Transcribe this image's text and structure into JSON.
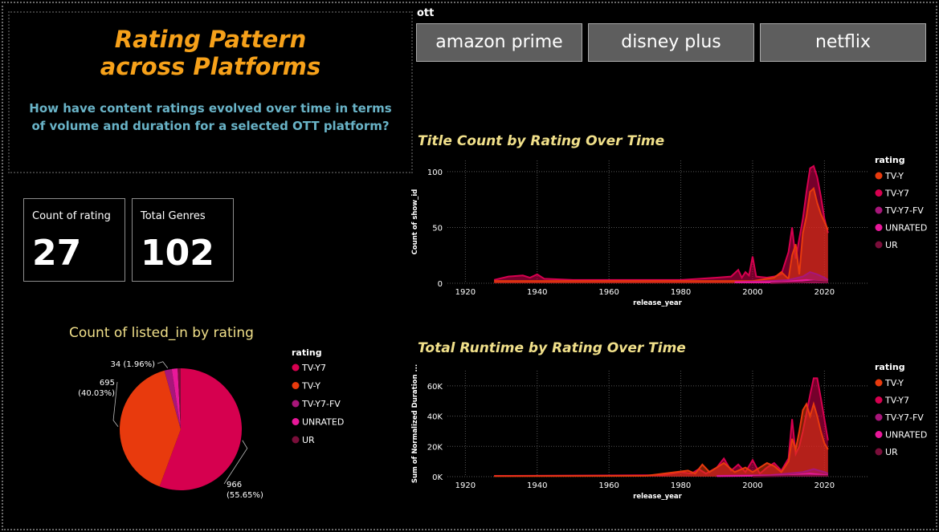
{
  "header": {
    "title_line1": "Rating Pattern",
    "title_line2": "across Platforms",
    "question": "How have content ratings evolved over time in terms of volume and duration for a selected OTT platform?"
  },
  "kpis": [
    {
      "label": "Count of rating",
      "value": "27"
    },
    {
      "label": "Total Genres",
      "value": "102"
    }
  ],
  "slicer": {
    "title": "ott",
    "options": [
      "amazon prime",
      "disney plus",
      "netflix"
    ]
  },
  "colors": {
    "TV-Y7": "#d6004f",
    "TV-Y": "#e83a0d",
    "TV-Y7-FV": "#a8167a",
    "UNRATED": "#e8189a",
    "UR": "#7a0e3a",
    "title": "#f6a11a",
    "chart_title": "#f1e08a",
    "question": "#69b3c7"
  },
  "chart_data": [
    {
      "type": "pie",
      "title": "Count of listed_in by rating",
      "legend_title": "rating",
      "legend_position": "right",
      "slices": [
        {
          "label": "TV-Y7",
          "value": 966,
          "display": "966",
          "pct": "(55.65%)"
        },
        {
          "label": "TV-Y",
          "value": 695,
          "display": "695",
          "pct": "(40.03%)"
        },
        {
          "label": "TV-Y7-FV",
          "value": 34,
          "display": "34 (1.96%)",
          "pct": ""
        },
        {
          "label": "UNRATED",
          "value": 27,
          "display": "",
          "pct": ""
        },
        {
          "label": "UR",
          "value": 14,
          "display": "",
          "pct": ""
        }
      ]
    },
    {
      "type": "area",
      "title": "Title Count by Rating Over Time",
      "xlabel": "release_year",
      "ylabel": "Count of show_id",
      "xlim": [
        1915,
        2032
      ],
      "ylim": [
        0,
        110
      ],
      "xticks": [
        1920,
        1940,
        1960,
        1980,
        2000,
        2020
      ],
      "yticks": [
        0,
        50,
        100
      ],
      "ytick_labels": [
        "0",
        "50",
        "100"
      ],
      "grid": true,
      "legend_title": "rating",
      "legend_position": "right",
      "legend": [
        "TV-Y",
        "TV-Y7",
        "TV-Y7-FV",
        "UNRATED",
        "UR"
      ],
      "series": [
        {
          "name": "TV-Y7",
          "points": [
            [
              1928,
              3
            ],
            [
              1932,
              6
            ],
            [
              1936,
              7
            ],
            [
              1938,
              5
            ],
            [
              1940,
              8
            ],
            [
              1942,
              4
            ],
            [
              1950,
              3
            ],
            [
              1960,
              3
            ],
            [
              1970,
              3
            ],
            [
              1980,
              3
            ],
            [
              1985,
              4
            ],
            [
              1990,
              5
            ],
            [
              1994,
              6
            ],
            [
              1996,
              12
            ],
            [
              1997,
              5
            ],
            [
              1998,
              10
            ],
            [
              1999,
              7
            ],
            [
              2000,
              24
            ],
            [
              2001,
              6
            ],
            [
              2004,
              5
            ],
            [
              2006,
              6
            ],
            [
              2008,
              8
            ],
            [
              2010,
              28
            ],
            [
              2011,
              50
            ],
            [
              2012,
              22
            ],
            [
              2013,
              40
            ],
            [
              2014,
              58
            ],
            [
              2015,
              82
            ],
            [
              2016,
              103
            ],
            [
              2017,
              105
            ],
            [
              2018,
              95
            ],
            [
              2019,
              78
            ],
            [
              2020,
              58
            ],
            [
              2021,
              45
            ]
          ]
        },
        {
          "name": "TV-Y",
          "points": [
            [
              1928,
              2
            ],
            [
              1960,
              2
            ],
            [
              1985,
              2
            ],
            [
              2000,
              2
            ],
            [
              2006,
              5
            ],
            [
              2008,
              10
            ],
            [
              2010,
              4
            ],
            [
              2011,
              25
            ],
            [
              2012,
              35
            ],
            [
              2013,
              8
            ],
            [
              2014,
              45
            ],
            [
              2015,
              60
            ],
            [
              2016,
              82
            ],
            [
              2017,
              85
            ],
            [
              2018,
              72
            ],
            [
              2019,
              62
            ],
            [
              2020,
              55
            ],
            [
              2021,
              48
            ]
          ]
        },
        {
          "name": "TV-Y7-FV",
          "points": [
            [
              1995,
              1
            ],
            [
              2005,
              2
            ],
            [
              2010,
              3
            ],
            [
              2014,
              6
            ],
            [
              2016,
              10
            ],
            [
              2018,
              8
            ],
            [
              2020,
              5
            ],
            [
              2021,
              3
            ]
          ]
        },
        {
          "name": "UNRATED",
          "points": [
            [
              1995,
              1
            ],
            [
              2008,
              1
            ],
            [
              2015,
              3
            ],
            [
              2018,
              2
            ],
            [
              2021,
              1
            ]
          ]
        },
        {
          "name": "UR",
          "points": [
            [
              2005,
              0
            ],
            [
              2014,
              1
            ],
            [
              2017,
              2
            ],
            [
              2021,
              1
            ]
          ]
        }
      ]
    },
    {
      "type": "area",
      "title": "Total Runtime by Rating Over Time",
      "xlabel": "release_year",
      "ylabel": "Sum of Normalized Duration ...",
      "xlim": [
        1915,
        2032
      ],
      "ylim": [
        0,
        70000
      ],
      "xticks": [
        1920,
        1940,
        1960,
        1980,
        2000,
        2020
      ],
      "yticks": [
        0,
        20000,
        40000,
        60000
      ],
      "ytick_labels": [
        "0K",
        "20K",
        "40K",
        "60K"
      ],
      "grid": true,
      "legend_title": "rating",
      "legend_position": "right",
      "legend": [
        "TV-Y",
        "TV-Y7",
        "TV-Y7-FV",
        "UNRATED",
        "UR"
      ],
      "series": [
        {
          "name": "TV-Y7",
          "points": [
            [
              1928,
              500
            ],
            [
              1960,
              800
            ],
            [
              1975,
              1000
            ],
            [
              1980,
              3000
            ],
            [
              1983,
              2000
            ],
            [
              1985,
              5000
            ],
            [
              1987,
              2000
            ],
            [
              1990,
              6000
            ],
            [
              1992,
              12000
            ],
            [
              1994,
              4000
            ],
            [
              1996,
              8000
            ],
            [
              1998,
              3000
            ],
            [
              2000,
              11000
            ],
            [
              2002,
              2000
            ],
            [
              2004,
              6000
            ],
            [
              2006,
              9000
            ],
            [
              2008,
              4000
            ],
            [
              2010,
              12000
            ],
            [
              2011,
              38000
            ],
            [
              2012,
              15000
            ],
            [
              2013,
              20000
            ],
            [
              2014,
              30000
            ],
            [
              2015,
              42000
            ],
            [
              2016,
              54000
            ],
            [
              2017,
              65000
            ],
            [
              2018,
              65000
            ],
            [
              2019,
              52000
            ],
            [
              2020,
              38000
            ],
            [
              2021,
              24000
            ]
          ]
        },
        {
          "name": "TV-Y",
          "points": [
            [
              1928,
              300
            ],
            [
              1970,
              500
            ],
            [
              1982,
              4000
            ],
            [
              1984,
              2000
            ],
            [
              1986,
              8000
            ],
            [
              1988,
              3000
            ],
            [
              1990,
              6000
            ],
            [
              1992,
              9000
            ],
            [
              1995,
              3000
            ],
            [
              1998,
              6000
            ],
            [
              2000,
              3000
            ],
            [
              2004,
              9000
            ],
            [
              2006,
              7000
            ],
            [
              2008,
              3000
            ],
            [
              2010,
              10000
            ],
            [
              2011,
              25000
            ],
            [
              2012,
              18000
            ],
            [
              2013,
              30000
            ],
            [
              2014,
              44000
            ],
            [
              2015,
              48000
            ],
            [
              2016,
              40000
            ],
            [
              2017,
              48000
            ],
            [
              2018,
              40000
            ],
            [
              2019,
              30000
            ],
            [
              2020,
              22000
            ],
            [
              2021,
              18000
            ]
          ]
        },
        {
          "name": "TV-Y7-FV",
          "points": [
            [
              1990,
              500
            ],
            [
              2005,
              1000
            ],
            [
              2014,
              3000
            ],
            [
              2017,
              5000
            ],
            [
              2020,
              3000
            ],
            [
              2021,
              2000
            ]
          ]
        },
        {
          "name": "UNRATED",
          "points": [
            [
              1990,
              300
            ],
            [
              2010,
              800
            ],
            [
              2016,
              2000
            ],
            [
              2021,
              800
            ]
          ]
        },
        {
          "name": "UR",
          "points": [
            [
              2000,
              0
            ],
            [
              2015,
              800
            ],
            [
              2021,
              500
            ]
          ]
        }
      ]
    }
  ]
}
